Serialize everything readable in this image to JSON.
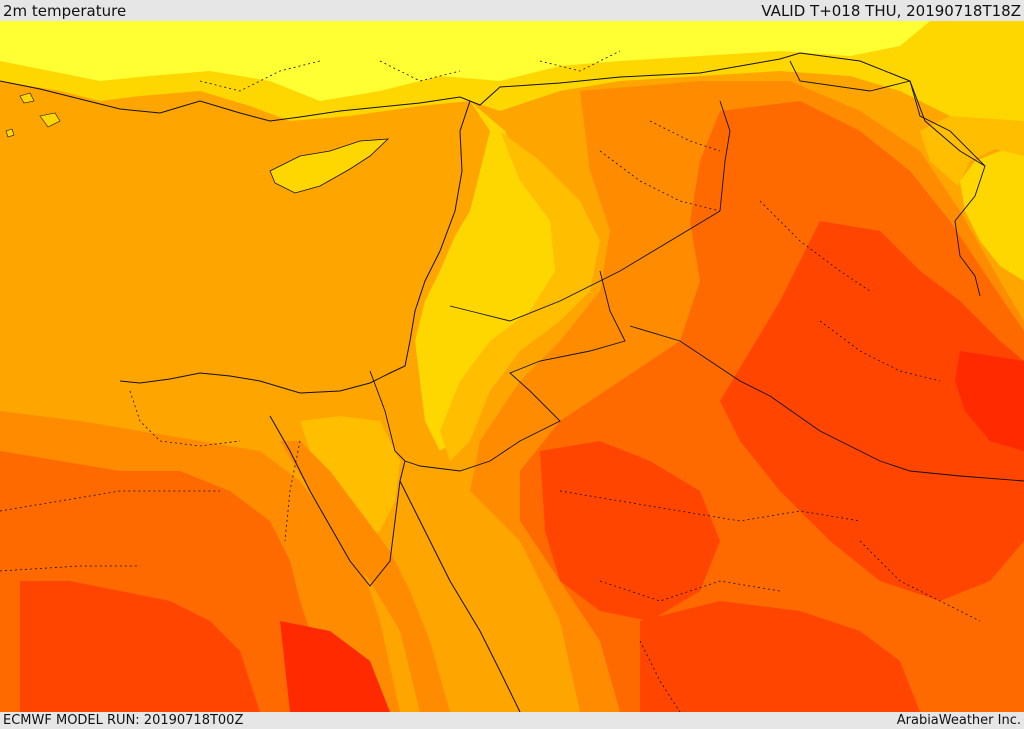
{
  "header": {
    "title": "2m temperature",
    "valid": "VALID T+018 THU, 20190718T18Z"
  },
  "footer": {
    "model_run": "ECMWF MODEL RUN: 20190718T00Z",
    "credit": "ArabiaWeather Inc."
  },
  "palette": {
    "pale_yellow": "#ffff33",
    "yellow": "#ffd700",
    "amber": "#ffbf00",
    "orange_light": "#ffa500",
    "orange": "#ff8c00",
    "orange_dark": "#ff6a00",
    "red_orange": "#ff4500",
    "red": "#ff2a00",
    "border": "#111111"
  }
}
